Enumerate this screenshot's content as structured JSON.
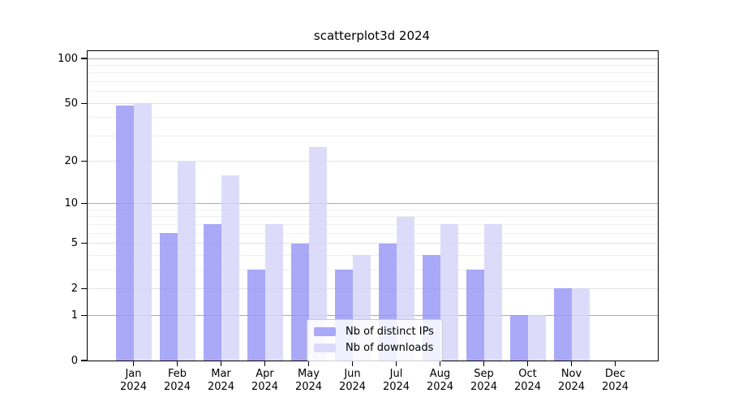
{
  "title": "scatterplot3d 2024",
  "legend": {
    "position": "lower center",
    "items": [
      {
        "label": "Nb of distinct IPs",
        "color": "#a9a9f8"
      },
      {
        "label": "Nb of downloads",
        "color": "#dcdcfa"
      }
    ]
  },
  "chart_data": {
    "type": "bar",
    "title": "scatterplot3d 2024",
    "categories": [
      "Jan 2024",
      "Feb 2024",
      "Mar 2024",
      "Apr 2024",
      "May 2024",
      "Jun 2024",
      "Jul 2024",
      "Aug 2024",
      "Sep 2024",
      "Oct 2024",
      "Nov 2024",
      "Dec 2024"
    ],
    "series": [
      {
        "name": "Nb of distinct IPs",
        "color": "#a9a9f8",
        "fill": "rgba(150,150,246,0.82)",
        "values": [
          48,
          6,
          7,
          3,
          5,
          3,
          5,
          4,
          3,
          1,
          2,
          0
        ]
      },
      {
        "name": "Nb of downloads",
        "color": "#dcdcfa",
        "fill": "rgba(212,212,249,0.82)",
        "values": [
          50,
          20,
          16,
          7,
          25,
          4,
          8,
          7,
          7,
          1,
          2,
          0
        ]
      }
    ],
    "xlabel": "",
    "ylabel": "",
    "grid": true,
    "legend_position": "lower center",
    "y_axis": {
      "scale": "log10(1+x)",
      "ticks": [
        0,
        1,
        2,
        5,
        10,
        20,
        50,
        100
      ],
      "minor_gridlines": [
        3,
        4,
        6,
        7,
        8,
        9,
        30,
        40,
        60,
        70,
        80,
        90
      ],
      "emphasized_gridlines": [
        1,
        10,
        100
      ],
      "ylim": [
        0,
        112
      ]
    }
  },
  "colors": {
    "background": "#ffffff",
    "axis": "#000000",
    "grid_major": "#e3e3e3",
    "grid_minor": "#efefef",
    "grid_decade": "#ababab",
    "legend_border": "#cccccc",
    "legend_bg": "rgba(255,255,255,0.82)"
  }
}
